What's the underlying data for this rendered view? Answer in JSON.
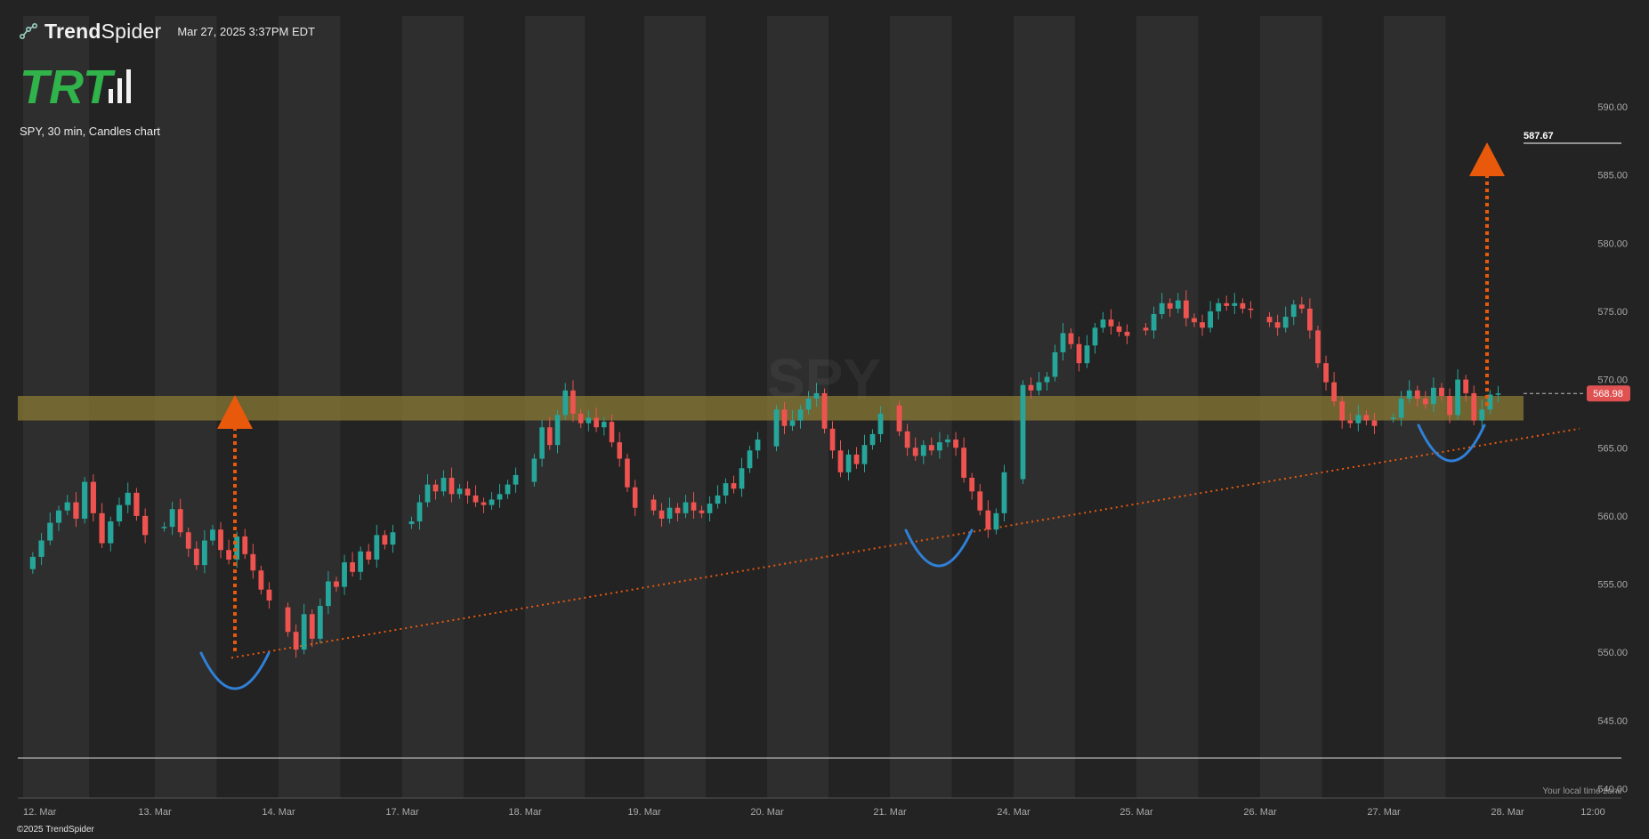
{
  "header": {
    "brand_name_a": "Trend",
    "brand_name_b": "Spider",
    "timestamp": "Mar 27, 2025 3:37PM EDT",
    "logo_text": "TRT",
    "chart_description": "SPY, 30 min, Candles chart"
  },
  "footer": {
    "copyright": "©2025 TrendSpider",
    "timezone_note": "Your local time zone"
  },
  "colors": {
    "background": "#232323",
    "session_band": "#2e2e2e",
    "up": "#26a69a",
    "down": "#ef5350",
    "zone": "#8a7a36",
    "target_arrow": "#e8590c",
    "trendline": "#e8590c",
    "pattern_arc": "#2f80d6",
    "price_tag": "#e05252",
    "logo_green": "#2fb34a"
  },
  "chart_data": {
    "type": "candlestick",
    "symbol": "SPY",
    "interval": "30 min",
    "ylim": [
      540,
      592
    ],
    "y_ticks": [
      "590.00",
      "585.00",
      "580.00",
      "575.00",
      "570.00",
      "565.00",
      "560.00",
      "555.00",
      "550.00",
      "545.00",
      "540.00"
    ],
    "x_ticks": [
      "12. Mar",
      "13. Mar",
      "14. Mar",
      "17. Mar",
      "18. Mar",
      "19. Mar",
      "20. Mar",
      "21. Mar",
      "24. Mar",
      "25. Mar",
      "26. Mar",
      "27. Mar",
      "28. Mar",
      "12:00"
    ],
    "close_series": [
      {
        "day": "12. Mar",
        "close": [
          557.0,
          558.2,
          559.5,
          560.4,
          561.0,
          559.8,
          562.5,
          560.2,
          558.0,
          559.6,
          560.8,
          561.7,
          560.0,
          558.6
        ]
      },
      {
        "day": "13. Mar",
        "close": [
          559.2,
          560.5,
          558.8,
          557.6,
          556.4,
          558.2,
          559.0,
          557.5,
          556.8,
          558.5,
          557.2,
          556.0,
          554.6,
          553.8
        ]
      },
      {
        "day": "14. Mar",
        "close": [
          551.5,
          550.2,
          552.8,
          551.0,
          553.4,
          555.2,
          554.8,
          556.6,
          555.9,
          557.4,
          556.8,
          558.6,
          557.9,
          558.8
        ]
      },
      {
        "day": "17. Mar",
        "close": [
          559.6,
          561.0,
          562.3,
          561.8,
          562.8,
          561.6,
          562.0,
          561.5,
          561.0,
          560.8,
          561.2,
          561.6,
          562.3,
          563.0
        ]
      },
      {
        "day": "18. Mar",
        "close": [
          564.2,
          566.5,
          565.2,
          567.4,
          569.2,
          567.5,
          566.8,
          567.2,
          566.5,
          566.9,
          565.4,
          564.2,
          562.1,
          560.6
        ]
      },
      {
        "day": "19. Mar",
        "close": [
          560.4,
          559.8,
          560.6,
          560.2,
          561.0,
          560.4,
          560.2,
          560.9,
          561.5,
          562.4,
          562.0,
          563.5,
          564.8,
          565.6
        ]
      },
      {
        "day": "20. Mar",
        "close": [
          567.8,
          566.6,
          567.0,
          567.8,
          568.6,
          569.0,
          566.4,
          564.8,
          563.2,
          564.5,
          563.8,
          565.2,
          566.0,
          567.5
        ]
      },
      {
        "day": "21. Mar",
        "close": [
          566.2,
          565.0,
          564.4,
          565.2,
          564.8,
          565.4,
          565.6,
          565.0,
          562.8,
          561.8,
          560.4,
          559.0,
          560.2,
          563.2
        ]
      },
      {
        "day": "24. Mar",
        "close": [
          569.6,
          569.2,
          569.8,
          570.2,
          572.0,
          573.4,
          572.6,
          571.2,
          572.5,
          573.8,
          574.4,
          573.9,
          573.5,
          573.2
        ]
      },
      {
        "day": "25. Mar",
        "close": [
          573.6,
          574.8,
          575.6,
          575.2,
          575.8,
          574.5,
          574.2,
          573.8,
          575.0,
          575.6,
          575.4,
          575.6,
          575.2,
          575.1
        ]
      },
      {
        "day": "26. Mar",
        "close": [
          574.2,
          573.8,
          574.6,
          575.5,
          575.2,
          573.6,
          571.2,
          569.8,
          568.4,
          567.0,
          566.8,
          567.4,
          567.0,
          566.6
        ]
      },
      {
        "day": "27. Mar",
        "close": [
          567.2,
          568.6,
          569.2,
          568.6,
          568.2,
          569.4,
          568.8,
          567.4,
          570.0,
          569.0,
          567.0,
          567.8,
          568.9,
          568.98
        ]
      }
    ],
    "resistance_zone": [
      567.0,
      568.8
    ],
    "rising_support_line": {
      "start": [
        "13. Mar",
        549.6
      ],
      "end": [
        "28. Mar",
        566.4
      ]
    },
    "last_price": "568.98",
    "target_price": "587.67"
  }
}
